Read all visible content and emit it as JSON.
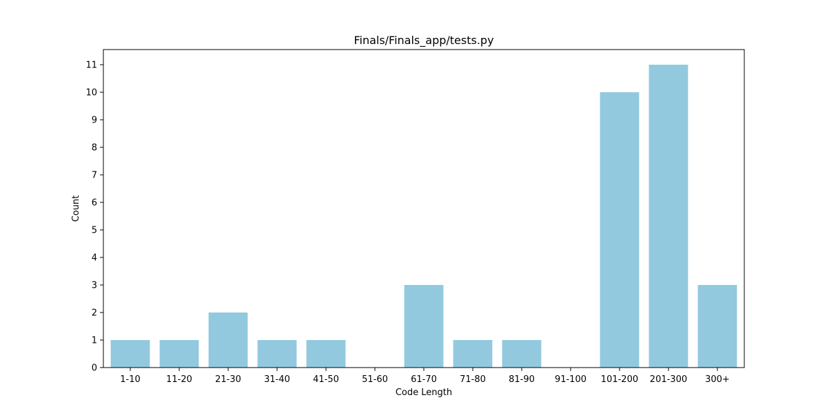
{
  "chart_data": {
    "type": "bar",
    "title": "Finals/Finals_app/tests.py",
    "xlabel": "Code Length",
    "ylabel": "Count",
    "categories": [
      "1-10",
      "11-20",
      "21-30",
      "31-40",
      "41-50",
      "51-60",
      "61-70",
      "71-80",
      "81-90",
      "91-100",
      "101-200",
      "201-300",
      "300+"
    ],
    "values": [
      1,
      1,
      2,
      1,
      1,
      0,
      3,
      1,
      1,
      0,
      10,
      11,
      3
    ],
    "ylim": [
      0,
      11.55
    ],
    "yticks": [
      0,
      1,
      2,
      3,
      4,
      5,
      6,
      7,
      8,
      9,
      10,
      11
    ],
    "bar_color": "#92c9df",
    "grid": false,
    "legend": "none"
  }
}
